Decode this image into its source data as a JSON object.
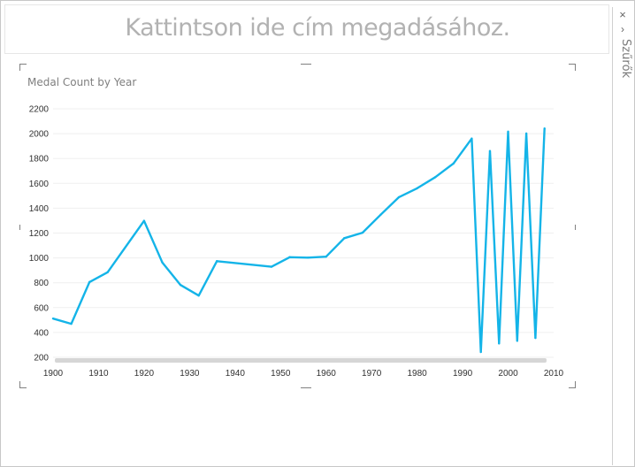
{
  "page": {
    "title": "Kattintson ide cím megadásához."
  },
  "filter_panel": {
    "close_glyph": "×",
    "expand_glyph": "›",
    "label": "Szűrők",
    "close_icon": "close-icon",
    "expand_icon": "chevron-right-icon"
  },
  "chart_data": {
    "type": "line",
    "title": "Medal Count by Year",
    "xlabel": "",
    "ylabel": "",
    "xlim": [
      1900,
      2010
    ],
    "ylim": [
      200,
      2200
    ],
    "x_ticks": [
      1900,
      1910,
      1920,
      1930,
      1940,
      1950,
      1960,
      1970,
      1980,
      1990,
      2000,
      2010
    ],
    "y_ticks": [
      200,
      400,
      600,
      800,
      1000,
      1200,
      1400,
      1600,
      1800,
      2000,
      2200
    ],
    "grid": true,
    "line_color": "#14b4e8",
    "series": [
      {
        "x": [
          1900,
          1904,
          1908,
          1912,
          1920,
          1924,
          1928,
          1932,
          1936,
          1948,
          1952,
          1956,
          1960,
          1964,
          1968,
          1972,
          1976,
          1980,
          1984,
          1988,
          1992,
          1994,
          1996,
          1998,
          2000,
          2002,
          2004,
          2006,
          2008
        ],
        "values": [
          512,
          470,
          806,
          885,
          1298,
          964,
          782,
          697,
          974,
          929,
          1006,
          1002,
          1010,
          1159,
          1203,
          1348,
          1489,
          1560,
          1650,
          1760,
          1960,
          243,
          1860,
          312,
          2016,
          333,
          2001,
          356,
          2042
        ]
      }
    ]
  }
}
